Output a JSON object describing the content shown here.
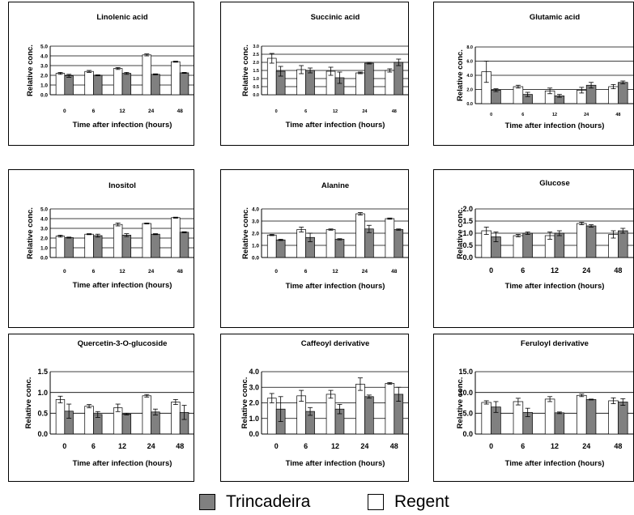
{
  "legend": {
    "trincadeira_label": "Trincadeira",
    "regent_label": "Regent",
    "trincadeira_color": "#808080",
    "regent_color": "#ffffff"
  },
  "chart_data": [
    {
      "type": "bar",
      "title": "Linolenic acid",
      "xlabel": "Time after infection (hours)",
      "ylabel": "Relative conc.",
      "categories": [
        "0",
        "6",
        "12",
        "24",
        "48"
      ],
      "ylim": [
        0,
        5
      ],
      "ytick_labels": [
        "0.0",
        "1.0",
        "2.0",
        "3.0",
        "4.0",
        "5.0"
      ],
      "series": [
        {
          "name": "Regent",
          "values": [
            2.2,
            2.4,
            2.7,
            4.1,
            3.4
          ],
          "errors": [
            0.1,
            0.1,
            0.1,
            0.1,
            0.05
          ]
        },
        {
          "name": "Trincadeira",
          "values": [
            1.95,
            2.0,
            2.2,
            2.1,
            2.25
          ],
          "errors": [
            0.15,
            0.05,
            0.1,
            0.05,
            0.05
          ]
        }
      ]
    },
    {
      "type": "bar",
      "title": "Succinic acid",
      "xlabel": "Time after infection (hours)",
      "ylabel": "Relative conc.",
      "categories": [
        "0",
        "6",
        "12",
        "24",
        "48"
      ],
      "ylim": [
        0,
        3
      ],
      "ytick_labels": [
        "0.0",
        "0.5",
        "1.0",
        "1.5",
        "2.0",
        "2.5",
        "3.0"
      ],
      "series": [
        {
          "name": "Regent",
          "values": [
            2.25,
            1.55,
            1.45,
            1.35,
            1.5
          ],
          "errors": [
            0.3,
            0.25,
            0.25,
            0.05,
            0.1
          ]
        },
        {
          "name": "Trincadeira",
          "values": [
            1.45,
            1.5,
            1.05,
            1.95,
            2.0
          ],
          "errors": [
            0.3,
            0.15,
            0.35,
            0.05,
            0.2
          ]
        }
      ]
    },
    {
      "type": "bar",
      "title": "Glutamic acid",
      "xlabel": "Time after infection (hours)",
      "ylabel": "Relative conc.",
      "categories": [
        "0",
        "6",
        "12",
        "24",
        "48"
      ],
      "ylim": [
        0,
        8
      ],
      "ytick_labels": [
        "0.0",
        "2.0",
        "4.0",
        "6.0",
        "8.0"
      ],
      "series": [
        {
          "name": "Regent",
          "values": [
            4.5,
            2.4,
            1.8,
            1.9,
            2.4
          ],
          "errors": [
            1.5,
            0.2,
            0.4,
            0.4,
            0.3
          ]
        },
        {
          "name": "Trincadeira",
          "values": [
            1.9,
            1.3,
            1.1,
            2.6,
            3.0
          ],
          "errors": [
            0.2,
            0.3,
            0.2,
            0.4,
            0.2
          ]
        }
      ]
    },
    {
      "type": "bar",
      "title": "Inositol",
      "xlabel": "Time after infection (hours)",
      "ylabel": "Relative conc.",
      "categories": [
        "0",
        "6",
        "12",
        "24",
        "48"
      ],
      "ylim": [
        0,
        5
      ],
      "ytick_labels": [
        "0.0",
        "1.0",
        "2.0",
        "3.0",
        "4.0",
        "5.0"
      ],
      "series": [
        {
          "name": "Regent",
          "values": [
            2.2,
            2.4,
            3.4,
            3.5,
            4.1
          ],
          "errors": [
            0.1,
            0.05,
            0.15,
            0.05,
            0.05
          ]
        },
        {
          "name": "Trincadeira",
          "values": [
            2.05,
            2.25,
            2.3,
            2.4,
            2.6
          ],
          "errors": [
            0.05,
            0.15,
            0.15,
            0.05,
            0.05
          ]
        }
      ]
    },
    {
      "type": "bar",
      "title": "Alanine",
      "xlabel": "Time after infection (hours)",
      "ylabel": "Relative conc.",
      "categories": [
        "0",
        "6",
        "12",
        "24",
        "48"
      ],
      "ylim": [
        0,
        4
      ],
      "ytick_labels": [
        "0.0",
        "1.0",
        "2.0",
        "3.0",
        "4.0"
      ],
      "series": [
        {
          "name": "Regent",
          "values": [
            1.85,
            2.3,
            2.3,
            3.6,
            3.2
          ],
          "errors": [
            0.05,
            0.2,
            0.05,
            0.1,
            0.05
          ]
        },
        {
          "name": "Trincadeira",
          "values": [
            1.45,
            1.65,
            1.5,
            2.35,
            2.3
          ],
          "errors": [
            0.05,
            0.35,
            0.05,
            0.3,
            0.05
          ]
        }
      ]
    },
    {
      "type": "bar",
      "title": "Glucose",
      "xlabel": "Time after infection (hours)",
      "ylabel": "Relative conc.",
      "categories": [
        "0",
        "6",
        "12",
        "24",
        "48"
      ],
      "ylim": [
        0,
        2
      ],
      "ytick_labels": [
        "0.0",
        "0.5",
        "1.0",
        "1.5",
        "2.0"
      ],
      "series": [
        {
          "name": "Regent",
          "values": [
            1.1,
            0.9,
            0.9,
            1.4,
            0.95
          ],
          "errors": [
            0.15,
            0.05,
            0.15,
            0.05,
            0.15
          ]
        },
        {
          "name": "Trincadeira",
          "values": [
            0.85,
            1.0,
            1.0,
            1.3,
            1.1
          ],
          "errors": [
            0.2,
            0.05,
            0.1,
            0.05,
            0.1
          ]
        }
      ]
    },
    {
      "type": "bar",
      "title": "Quercetin-3-O-glucoside",
      "xlabel": "Time after infection (hours)",
      "ylabel": "Relative conc.",
      "categories": [
        "0",
        "6",
        "12",
        "24",
        "48"
      ],
      "ylim": [
        0,
        1.5
      ],
      "ytick_labels": [
        "0.0",
        "0.5",
        "1.0",
        "1.5"
      ],
      "series": [
        {
          "name": "Regent",
          "values": [
            0.83,
            0.67,
            0.63,
            0.92,
            0.77
          ],
          "errors": [
            0.08,
            0.04,
            0.09,
            0.03,
            0.06
          ]
        },
        {
          "name": "Trincadeira",
          "values": [
            0.55,
            0.47,
            0.48,
            0.53,
            0.52
          ],
          "errors": [
            0.17,
            0.07,
            0.02,
            0.07,
            0.17
          ]
        }
      ]
    },
    {
      "type": "bar",
      "title": "Caffeoyl derivative",
      "xlabel": "Time after infection (hours)",
      "ylabel": "Relative conc.",
      "categories": [
        "0",
        "6",
        "12",
        "24",
        "48"
      ],
      "ylim": [
        0,
        4
      ],
      "ytick_labels": [
        "0.0",
        "1.0",
        "2.0",
        "3.0",
        "4.0"
      ],
      "series": [
        {
          "name": "Regent",
          "values": [
            2.3,
            2.45,
            2.55,
            3.2,
            3.25
          ],
          "errors": [
            0.3,
            0.35,
            0.25,
            0.4,
            0.05
          ]
        },
        {
          "name": "Trincadeira",
          "values": [
            1.6,
            1.45,
            1.6,
            2.4,
            2.55
          ],
          "errors": [
            0.8,
            0.25,
            0.3,
            0.1,
            0.45
          ]
        }
      ]
    },
    {
      "type": "bar",
      "title": "Feruloyl derivative",
      "xlabel": "Time after infection (hours)",
      "ylabel": "Relative conc.",
      "categories": [
        "0",
        "6",
        "12",
        "24",
        "48"
      ],
      "ylim": [
        0,
        15
      ],
      "ytick_labels": [
        "0.0",
        "5.0",
        "10.0",
        "15.0"
      ],
      "series": [
        {
          "name": "Regent",
          "values": [
            7.6,
            7.8,
            8.4,
            9.3,
            8.0
          ],
          "errors": [
            0.4,
            0.8,
            0.6,
            0.3,
            0.7
          ]
        },
        {
          "name": "Trincadeira",
          "values": [
            6.5,
            5.2,
            5.1,
            8.3,
            7.7
          ],
          "errors": [
            1.3,
            1.0,
            0.2,
            0.1,
            0.8
          ]
        }
      ]
    }
  ]
}
